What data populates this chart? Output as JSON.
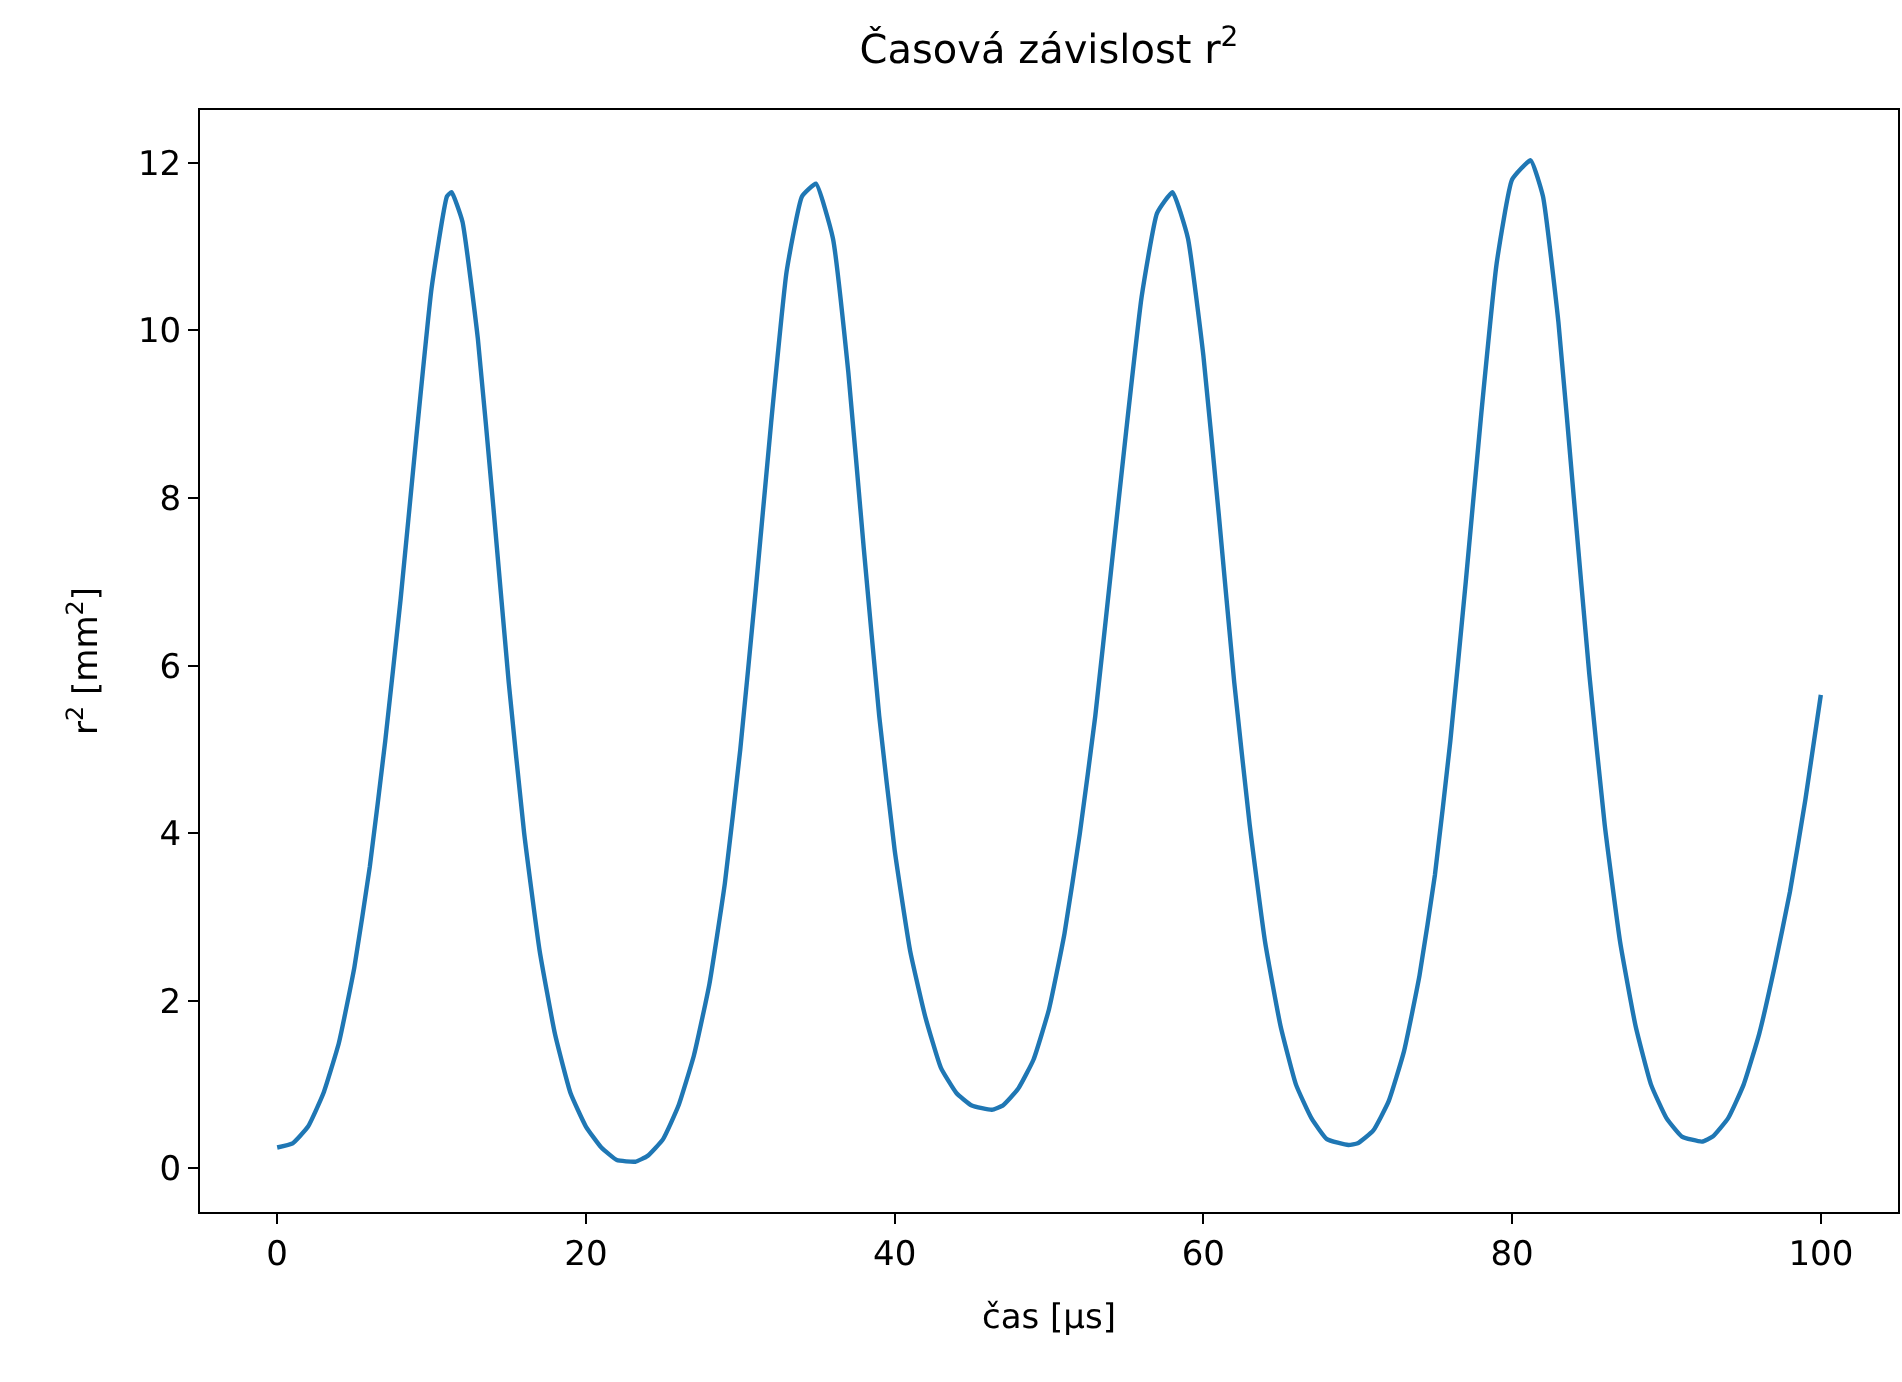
{
  "chart_data": {
    "type": "line",
    "title": "Časová závislost r$^{2}$",
    "xlabel": "čas [μs]",
    "ylabel": "r$^{2}$ [mm$^{2}$]",
    "x": [
      0,
      1,
      2,
      3,
      4,
      5,
      6,
      7,
      8,
      9,
      10,
      11,
      11.3,
      12,
      13,
      14,
      15,
      16,
      17,
      18,
      19,
      20,
      21,
      22,
      23.2,
      24,
      25,
      26,
      27,
      28,
      29,
      30,
      31,
      32,
      33,
      34,
      34.9,
      36,
      37,
      38,
      39,
      40,
      41,
      42,
      43,
      44,
      45,
      46.3,
      47,
      48,
      49,
      50,
      51,
      52,
      53,
      54,
      55,
      56,
      57,
      58,
      59,
      60,
      61,
      62,
      63,
      64,
      65,
      66,
      67,
      68,
      69.4,
      70,
      71,
      72,
      73,
      74,
      75,
      76,
      77,
      78,
      79,
      80,
      81.2,
      82,
      83,
      84,
      85,
      86,
      87,
      88,
      89,
      90,
      91,
      92.3,
      93,
      94,
      95,
      96,
      97,
      98,
      99,
      100
    ],
    "series": [
      {
        "color": "#1f77b4",
        "values": [
          0.25,
          0.3,
          0.5,
          0.9,
          1.5,
          2.4,
          3.6,
          5.1,
          6.8,
          8.7,
          10.5,
          11.6,
          11.65,
          11.3,
          9.9,
          7.9,
          5.8,
          4.0,
          2.6,
          1.6,
          0.9,
          0.5,
          0.25,
          0.1,
          0.08,
          0.15,
          0.35,
          0.75,
          1.35,
          2.2,
          3.4,
          5.0,
          6.9,
          8.9,
          10.7,
          11.6,
          11.75,
          11.1,
          9.5,
          7.4,
          5.4,
          3.8,
          2.6,
          1.8,
          1.2,
          0.9,
          0.75,
          0.7,
          0.75,
          0.95,
          1.3,
          1.9,
          2.8,
          4.0,
          5.4,
          7.1,
          8.8,
          10.4,
          11.4,
          11.65,
          11.1,
          9.7,
          7.8,
          5.8,
          4.1,
          2.7,
          1.7,
          1.0,
          0.6,
          0.35,
          0.28,
          0.3,
          0.45,
          0.8,
          1.4,
          2.3,
          3.5,
          5.1,
          7.0,
          9.0,
          10.8,
          11.8,
          12.03,
          11.6,
          10.1,
          8.0,
          5.9,
          4.1,
          2.7,
          1.7,
          1.0,
          0.6,
          0.38,
          0.32,
          0.38,
          0.6,
          1.0,
          1.6,
          2.4,
          3.3,
          4.4,
          5.65
        ]
      }
    ],
    "xlim": [
      -5,
      105
    ],
    "xticks": [
      0,
      20,
      40,
      60,
      80,
      100
    ],
    "ylim": [
      -0.52,
      12.63
    ],
    "yticks": [
      0,
      2,
      4,
      6,
      8,
      10,
      12
    ],
    "grid": false,
    "marker": "none",
    "line_style": "solid"
  }
}
